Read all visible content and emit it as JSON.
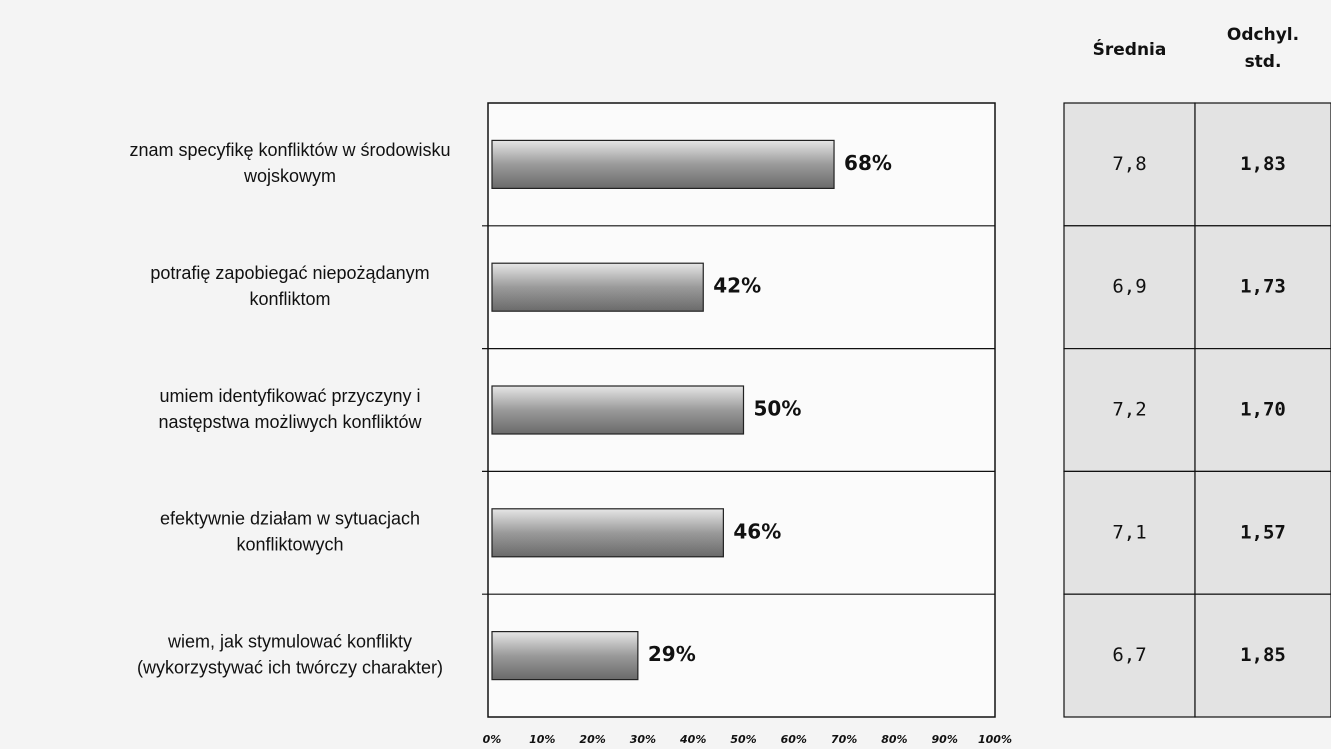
{
  "chart_data": {
    "type": "bar",
    "orientation": "horizontal",
    "categories": [
      [
        "znam specyfikę konfliktów w środowisku",
        "wojskowym"
      ],
      [
        "potrafię zapobiegać niepożądanym",
        "konfliktom"
      ],
      [
        "umiem identyfikować przyczyny i",
        "następstwa możliwych konfliktów"
      ],
      [
        "efektywnie działam w sytuacjach",
        "konfliktowych"
      ],
      [
        "wiem, jak stymulować konflikty",
        "(wykorzystywać ich twórczy charakter)"
      ]
    ],
    "values": [
      68,
      42,
      50,
      46,
      29
    ],
    "value_labels": [
      "68%",
      "42%",
      "50%",
      "46%",
      "29%"
    ],
    "color": "#b0b0b0",
    "xlim": [
      0,
      100
    ],
    "xticks": [
      {
        "value": 0,
        "label": "0%"
      },
      {
        "value": 10,
        "label": "10%"
      },
      {
        "value": 20,
        "label": "20%"
      },
      {
        "value": 30,
        "label": "30%"
      },
      {
        "value": 40,
        "label": "40%"
      },
      {
        "value": 50,
        "label": "50%"
      },
      {
        "value": 60,
        "label": "60%"
      },
      {
        "value": 70,
        "label": "70%"
      },
      {
        "value": 80,
        "label": "80%"
      },
      {
        "value": 90,
        "label": "90%"
      },
      {
        "value": 100,
        "label": "100%"
      }
    ],
    "grid": false
  },
  "table": {
    "columns": [
      [
        "Średnia"
      ],
      [
        "Odchyl.",
        "std."
      ]
    ],
    "rows": [
      [
        "7,8",
        "1,83"
      ],
      [
        "6,9",
        "1,73"
      ],
      [
        "7,2",
        "1,70"
      ],
      [
        "7,1",
        "1,57"
      ],
      [
        "6,7",
        "1,85"
      ]
    ]
  }
}
